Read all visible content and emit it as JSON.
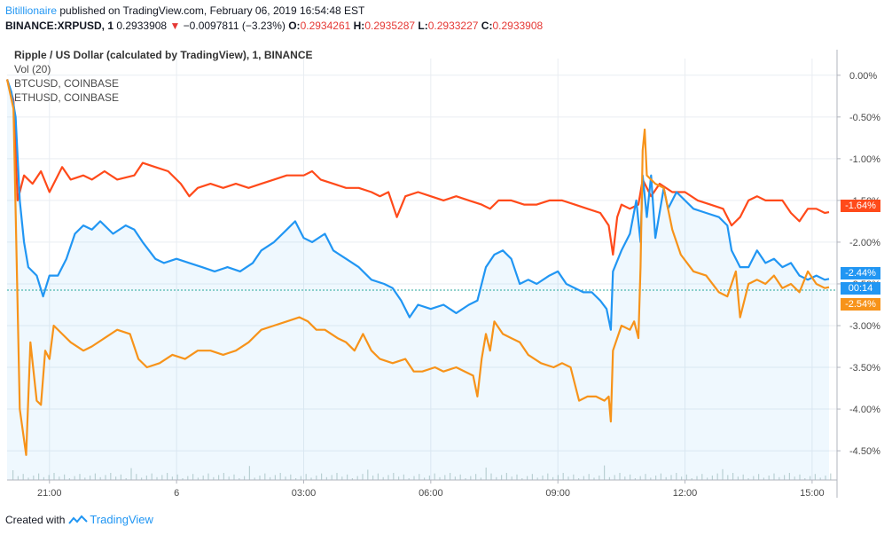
{
  "header": {
    "author": "Bitillionaire",
    "published": " published on TradingView.com, February 06, 2019 16:54:48 EST",
    "symbol": "BINANCE:XRPUSD, 1",
    "last": "0.2933908",
    "change": "−0.0097811 (−3.23%)",
    "o_label": "O:",
    "o_value": "0.2934261",
    "h_label": "H:",
    "h_value": "0.2935287",
    "l_label": "L:",
    "l_value": "0.2933227",
    "c_label": "C:",
    "c_value": "0.2933908"
  },
  "legend": {
    "title": "Ripple / US Dollar (calculated by TradingView), 1, BINANCE",
    "vol": "Vol (20)",
    "btc": "BTCUSD, COINBASE",
    "eth": "ETHUSD, COINBASE"
  },
  "footer": {
    "created_with": "Created with",
    "brand": "TradingView"
  },
  "colors": {
    "xrp": "#ff4a1a",
    "btc": "#2196f3",
    "eth": "#f7931a",
    "grid": "#e9edf2",
    "axis": "#9598a1"
  },
  "chart_data": {
    "type": "line",
    "ylabel": "",
    "ylim": [
      -4.85,
      0.2
    ],
    "y_ticks": [
      "0.00%",
      "-0.50%",
      "-1.00%",
      "-1.50%",
      "-2.00%",
      "-2.50%",
      "-3.00%",
      "-3.50%",
      "-4.00%",
      "-4.50%"
    ],
    "y_tick_values": [
      0,
      -0.5,
      -1.0,
      -1.5,
      -2.0,
      -2.5,
      -3.0,
      -3.5,
      -4.0,
      -4.5
    ],
    "xlim": [
      19.95,
      15.2
    ],
    "x_ticks": [
      "21:00",
      "6",
      "03:00",
      "06:00",
      "09:00",
      "12:00",
      "15:00"
    ],
    "x_tick_values": [
      21,
      24,
      27,
      30,
      33,
      36,
      39
    ],
    "tags": {
      "xrp": "-1.64%",
      "btc": "-2.44%",
      "eth": "-2.54%",
      "countdown": "00:14"
    },
    "series": [
      {
        "key": "xrp",
        "values": [
          [
            20.0,
            -0.05
          ],
          [
            20.15,
            -0.3
          ],
          [
            20.25,
            -1.5
          ],
          [
            20.4,
            -1.2
          ],
          [
            20.6,
            -1.3
          ],
          [
            20.8,
            -1.15
          ],
          [
            21.0,
            -1.4
          ],
          [
            21.3,
            -1.1
          ],
          [
            21.5,
            -1.25
          ],
          [
            21.8,
            -1.2
          ],
          [
            22.0,
            -1.25
          ],
          [
            22.3,
            -1.15
          ],
          [
            22.6,
            -1.25
          ],
          [
            23.0,
            -1.2
          ],
          [
            23.2,
            -1.05
          ],
          [
            23.5,
            -1.1
          ],
          [
            23.8,
            -1.15
          ],
          [
            24.1,
            -1.3
          ],
          [
            24.3,
            -1.45
          ],
          [
            24.5,
            -1.35
          ],
          [
            24.8,
            -1.3
          ],
          [
            25.1,
            -1.35
          ],
          [
            25.4,
            -1.3
          ],
          [
            25.7,
            -1.35
          ],
          [
            26.0,
            -1.3
          ],
          [
            26.3,
            -1.25
          ],
          [
            26.6,
            -1.2
          ],
          [
            27.0,
            -1.2
          ],
          [
            27.2,
            -1.15
          ],
          [
            27.4,
            -1.25
          ],
          [
            27.7,
            -1.3
          ],
          [
            28.0,
            -1.35
          ],
          [
            28.3,
            -1.35
          ],
          [
            28.6,
            -1.4
          ],
          [
            28.8,
            -1.45
          ],
          [
            29.0,
            -1.4
          ],
          [
            29.2,
            -1.7
          ],
          [
            29.4,
            -1.45
          ],
          [
            29.7,
            -1.4
          ],
          [
            30.0,
            -1.45
          ],
          [
            30.3,
            -1.5
          ],
          [
            30.6,
            -1.45
          ],
          [
            30.9,
            -1.5
          ],
          [
            31.2,
            -1.55
          ],
          [
            31.4,
            -1.6
          ],
          [
            31.6,
            -1.5
          ],
          [
            31.9,
            -1.5
          ],
          [
            32.2,
            -1.55
          ],
          [
            32.5,
            -1.55
          ],
          [
            32.8,
            -1.5
          ],
          [
            33.1,
            -1.5
          ],
          [
            33.4,
            -1.55
          ],
          [
            33.7,
            -1.6
          ],
          [
            34.0,
            -1.65
          ],
          [
            34.2,
            -1.8
          ],
          [
            34.3,
            -2.15
          ],
          [
            34.4,
            -1.7
          ],
          [
            34.5,
            -1.55
          ],
          [
            34.7,
            -1.6
          ],
          [
            34.9,
            -1.55
          ],
          [
            35.0,
            -1.25
          ],
          [
            35.2,
            -1.45
          ],
          [
            35.4,
            -1.3
          ],
          [
            35.7,
            -1.4
          ],
          [
            36.0,
            -1.4
          ],
          [
            36.3,
            -1.5
          ],
          [
            36.6,
            -1.55
          ],
          [
            36.9,
            -1.6
          ],
          [
            37.1,
            -1.8
          ],
          [
            37.3,
            -1.7
          ],
          [
            37.5,
            -1.5
          ],
          [
            37.7,
            -1.45
          ],
          [
            37.9,
            -1.5
          ],
          [
            38.1,
            -1.5
          ],
          [
            38.3,
            -1.5
          ],
          [
            38.5,
            -1.65
          ],
          [
            38.7,
            -1.75
          ],
          [
            38.9,
            -1.6
          ],
          [
            39.1,
            -1.6
          ],
          [
            39.3,
            -1.65
          ],
          [
            39.4,
            -1.64
          ]
        ]
      },
      {
        "key": "btc",
        "values": [
          [
            20.0,
            -0.05
          ],
          [
            20.1,
            -0.2
          ],
          [
            20.2,
            -0.5
          ],
          [
            20.3,
            -1.5
          ],
          [
            20.4,
            -2.0
          ],
          [
            20.5,
            -2.3
          ],
          [
            20.7,
            -2.4
          ],
          [
            20.85,
            -2.65
          ],
          [
            21.0,
            -2.4
          ],
          [
            21.2,
            -2.4
          ],
          [
            21.4,
            -2.2
          ],
          [
            21.6,
            -1.9
          ],
          [
            21.8,
            -1.8
          ],
          [
            22.0,
            -1.85
          ],
          [
            22.2,
            -1.75
          ],
          [
            22.5,
            -1.9
          ],
          [
            22.8,
            -1.8
          ],
          [
            23.0,
            -1.85
          ],
          [
            23.2,
            -2.0
          ],
          [
            23.5,
            -2.2
          ],
          [
            23.7,
            -2.25
          ],
          [
            24.0,
            -2.2
          ],
          [
            24.3,
            -2.25
          ],
          [
            24.6,
            -2.3
          ],
          [
            24.9,
            -2.35
          ],
          [
            25.2,
            -2.3
          ],
          [
            25.5,
            -2.35
          ],
          [
            25.8,
            -2.25
          ],
          [
            26.0,
            -2.1
          ],
          [
            26.3,
            -2.0
          ],
          [
            26.6,
            -1.85
          ],
          [
            26.8,
            -1.75
          ],
          [
            27.0,
            -1.95
          ],
          [
            27.2,
            -2.0
          ],
          [
            27.5,
            -1.9
          ],
          [
            27.7,
            -2.1
          ],
          [
            28.0,
            -2.2
          ],
          [
            28.3,
            -2.3
          ],
          [
            28.6,
            -2.45
          ],
          [
            28.9,
            -2.5
          ],
          [
            29.1,
            -2.55
          ],
          [
            29.3,
            -2.7
          ],
          [
            29.5,
            -2.9
          ],
          [
            29.7,
            -2.75
          ],
          [
            30.0,
            -2.8
          ],
          [
            30.3,
            -2.75
          ],
          [
            30.6,
            -2.85
          ],
          [
            30.9,
            -2.75
          ],
          [
            31.1,
            -2.7
          ],
          [
            31.3,
            -2.3
          ],
          [
            31.5,
            -2.15
          ],
          [
            31.7,
            -2.1
          ],
          [
            31.9,
            -2.2
          ],
          [
            32.1,
            -2.5
          ],
          [
            32.3,
            -2.45
          ],
          [
            32.5,
            -2.5
          ],
          [
            32.8,
            -2.4
          ],
          [
            33.0,
            -2.35
          ],
          [
            33.2,
            -2.5
          ],
          [
            33.4,
            -2.55
          ],
          [
            33.6,
            -2.6
          ],
          [
            33.8,
            -2.6
          ],
          [
            34.0,
            -2.7
          ],
          [
            34.15,
            -2.8
          ],
          [
            34.25,
            -3.05
          ],
          [
            34.3,
            -2.35
          ],
          [
            34.5,
            -2.1
          ],
          [
            34.7,
            -1.9
          ],
          [
            34.85,
            -1.5
          ],
          [
            34.95,
            -2.0
          ],
          [
            35.0,
            -1.2
          ],
          [
            35.1,
            -1.7
          ],
          [
            35.2,
            -1.2
          ],
          [
            35.3,
            -1.95
          ],
          [
            35.5,
            -1.35
          ],
          [
            35.6,
            -1.6
          ],
          [
            35.8,
            -1.4
          ],
          [
            36.0,
            -1.5
          ],
          [
            36.2,
            -1.6
          ],
          [
            36.5,
            -1.65
          ],
          [
            36.8,
            -1.7
          ],
          [
            37.0,
            -1.8
          ],
          [
            37.1,
            -2.1
          ],
          [
            37.3,
            -2.3
          ],
          [
            37.5,
            -2.3
          ],
          [
            37.7,
            -2.1
          ],
          [
            37.9,
            -2.25
          ],
          [
            38.1,
            -2.2
          ],
          [
            38.3,
            -2.3
          ],
          [
            38.5,
            -2.25
          ],
          [
            38.7,
            -2.4
          ],
          [
            38.9,
            -2.45
          ],
          [
            39.1,
            -2.4
          ],
          [
            39.3,
            -2.45
          ],
          [
            39.4,
            -2.44
          ]
        ]
      },
      {
        "key": "eth",
        "values": [
          [
            20.0,
            -0.05
          ],
          [
            20.15,
            -0.4
          ],
          [
            20.3,
            -4.0
          ],
          [
            20.45,
            -4.55
          ],
          [
            20.55,
            -3.2
          ],
          [
            20.7,
            -3.9
          ],
          [
            20.8,
            -3.95
          ],
          [
            20.9,
            -3.3
          ],
          [
            21.0,
            -3.4
          ],
          [
            21.1,
            -3.0
          ],
          [
            21.3,
            -3.1
          ],
          [
            21.5,
            -3.2
          ],
          [
            21.8,
            -3.3
          ],
          [
            22.0,
            -3.25
          ],
          [
            22.3,
            -3.15
          ],
          [
            22.6,
            -3.05
          ],
          [
            22.9,
            -3.1
          ],
          [
            23.1,
            -3.4
          ],
          [
            23.3,
            -3.5
          ],
          [
            23.6,
            -3.45
          ],
          [
            23.9,
            -3.35
          ],
          [
            24.2,
            -3.4
          ],
          [
            24.5,
            -3.3
          ],
          [
            24.8,
            -3.3
          ],
          [
            25.1,
            -3.35
          ],
          [
            25.4,
            -3.3
          ],
          [
            25.7,
            -3.2
          ],
          [
            26.0,
            -3.05
          ],
          [
            26.3,
            -3.0
          ],
          [
            26.6,
            -2.95
          ],
          [
            26.9,
            -2.9
          ],
          [
            27.1,
            -2.95
          ],
          [
            27.3,
            -3.05
          ],
          [
            27.5,
            -3.05
          ],
          [
            27.8,
            -3.15
          ],
          [
            28.0,
            -3.2
          ],
          [
            28.2,
            -3.3
          ],
          [
            28.4,
            -3.1
          ],
          [
            28.6,
            -3.3
          ],
          [
            28.8,
            -3.4
          ],
          [
            29.1,
            -3.45
          ],
          [
            29.4,
            -3.4
          ],
          [
            29.6,
            -3.55
          ],
          [
            29.8,
            -3.55
          ],
          [
            30.1,
            -3.5
          ],
          [
            30.3,
            -3.55
          ],
          [
            30.6,
            -3.5
          ],
          [
            30.8,
            -3.55
          ],
          [
            31.0,
            -3.6
          ],
          [
            31.1,
            -3.85
          ],
          [
            31.2,
            -3.4
          ],
          [
            31.3,
            -3.1
          ],
          [
            31.4,
            -3.3
          ],
          [
            31.5,
            -2.95
          ],
          [
            31.7,
            -3.1
          ],
          [
            31.9,
            -3.15
          ],
          [
            32.1,
            -3.2
          ],
          [
            32.3,
            -3.35
          ],
          [
            32.6,
            -3.45
          ],
          [
            32.9,
            -3.5
          ],
          [
            33.1,
            -3.45
          ],
          [
            33.3,
            -3.5
          ],
          [
            33.5,
            -3.9
          ],
          [
            33.7,
            -3.85
          ],
          [
            33.9,
            -3.85
          ],
          [
            34.1,
            -3.9
          ],
          [
            34.2,
            -3.85
          ],
          [
            34.25,
            -4.15
          ],
          [
            34.3,
            -3.3
          ],
          [
            34.5,
            -3.0
          ],
          [
            34.7,
            -3.05
          ],
          [
            34.8,
            -2.95
          ],
          [
            34.9,
            -3.15
          ],
          [
            34.95,
            -2.3
          ],
          [
            35.0,
            -0.9
          ],
          [
            35.05,
            -0.65
          ],
          [
            35.1,
            -1.2
          ],
          [
            35.3,
            -1.3
          ],
          [
            35.5,
            -1.35
          ],
          [
            35.7,
            -1.85
          ],
          [
            35.9,
            -2.15
          ],
          [
            36.2,
            -2.35
          ],
          [
            36.5,
            -2.4
          ],
          [
            36.8,
            -2.6
          ],
          [
            37.0,
            -2.65
          ],
          [
            37.2,
            -2.35
          ],
          [
            37.3,
            -2.9
          ],
          [
            37.5,
            -2.5
          ],
          [
            37.7,
            -2.45
          ],
          [
            37.9,
            -2.5
          ],
          [
            38.1,
            -2.4
          ],
          [
            38.3,
            -2.55
          ],
          [
            38.5,
            -2.5
          ],
          [
            38.7,
            -2.6
          ],
          [
            38.9,
            -2.35
          ],
          [
            39.1,
            -2.5
          ],
          [
            39.3,
            -2.55
          ],
          [
            39.4,
            -2.54
          ]
        ]
      }
    ]
  }
}
